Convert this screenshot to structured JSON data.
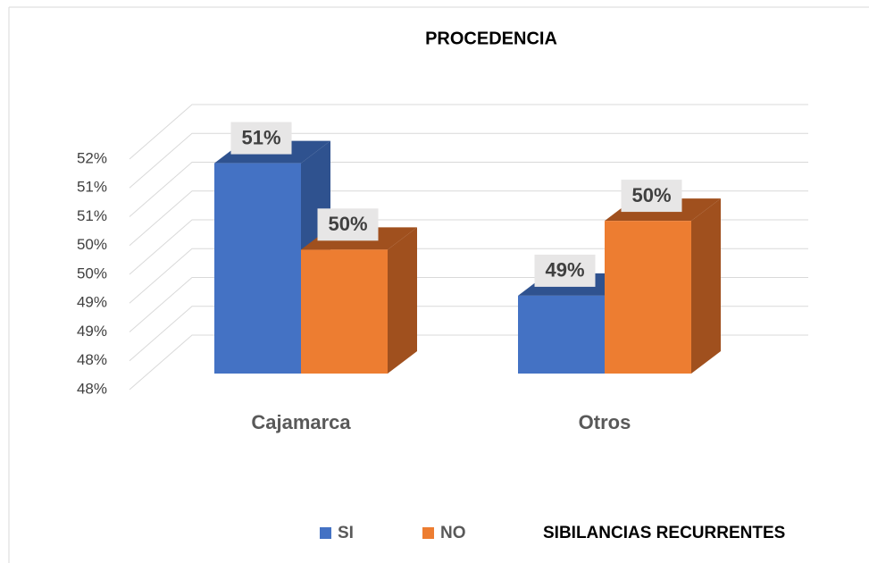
{
  "chart_data": {
    "type": "bar3d",
    "title": "PROCEDENCIA",
    "categories": [
      "Cajamarca",
      "Otros"
    ],
    "series": [
      {
        "name": "SI",
        "color": "#4472c4",
        "side": "#2f528f",
        "values": [
          51.4,
          49.1
        ],
        "value_labels": [
          "51%",
          "49%"
        ]
      },
      {
        "name": "NO",
        "color": "#ed7d31",
        "side": "#a0501e",
        "values": [
          49.9,
          50.4
        ],
        "value_labels": [
          "50%",
          "50%"
        ]
      }
    ],
    "legend_title": "SIBILANCIAS RECURRENTES",
    "ylim": [
      47.75,
      51.75
    ],
    "yticks": [
      {
        "value": 47.75,
        "label": "48%"
      },
      {
        "value": 48.25,
        "label": "48%"
      },
      {
        "value": 48.75,
        "label": "49%"
      },
      {
        "value": 49.25,
        "label": "49%"
      },
      {
        "value": 49.75,
        "label": "50%"
      },
      {
        "value": 50.25,
        "label": "50%"
      },
      {
        "value": 50.75,
        "label": "51%"
      },
      {
        "value": 51.25,
        "label": "51%"
      },
      {
        "value": 51.75,
        "label": "52%"
      }
    ],
    "grid": true
  }
}
